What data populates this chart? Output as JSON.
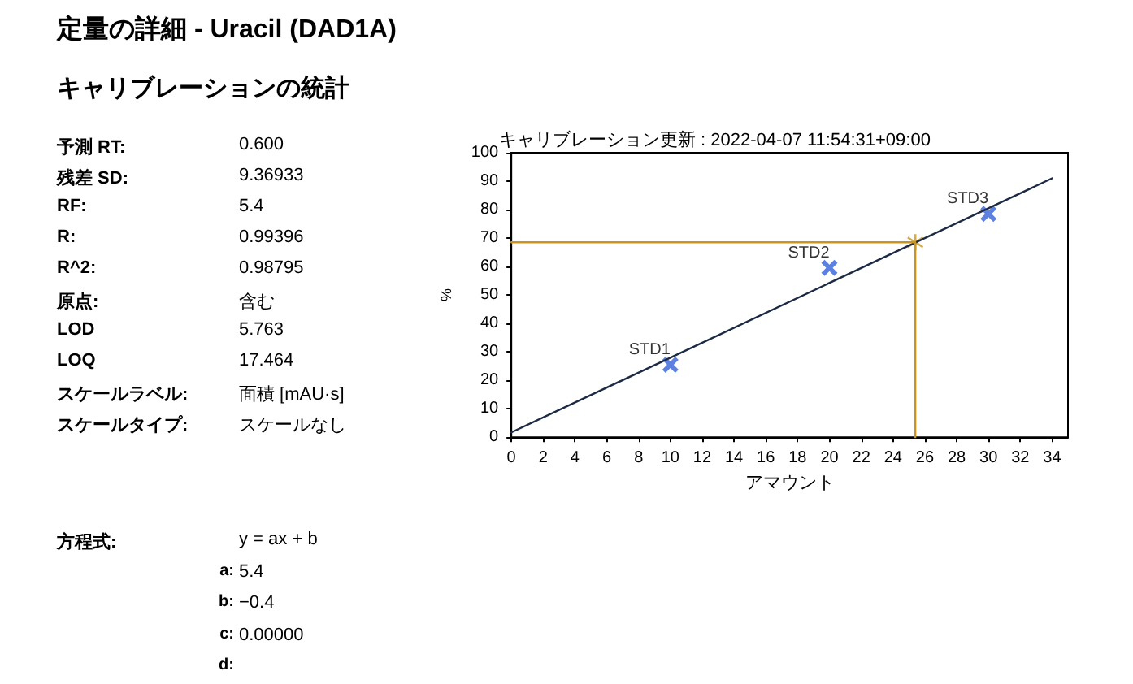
{
  "chart_data": [
    {
      "type": "other",
      "title": "定量の詳細 - Uracil (DAD1A)",
      "subtitle": "キャリブレーションの統計",
      "annotations": [
        "予測 RT:",
        "0.600",
        "残差 SD:",
        "9.36933",
        "RF:",
        "5.4",
        "R:",
        "0.99396",
        "R^2:",
        "0.98795",
        "原点:",
        "含む",
        "LOD",
        "5.763",
        "LOQ",
        "17.464",
        "スケールラベル:",
        "面積 [mAU·s]",
        "スケールタイプ:",
        "スケールなし",
        "方程式:",
        "y = ax + b",
        "a:",
        "5.4",
        "b:",
        "−0.4",
        "c:",
        "0.00000",
        "d:"
      ]
    },
    {
      "type": "scatter",
      "title": "キャリブレーション更新 : 2022-04-07 11:54:31+09:00",
      "xlabel": "アマウント",
      "ylabel": "%",
      "xlim": [
        0,
        35
      ],
      "xticks": [
        0,
        2,
        4,
        6,
        8,
        10,
        12,
        14,
        16,
        18,
        20,
        22,
        24,
        26,
        28,
        30,
        32,
        34
      ],
      "ylim": [
        0,
        100
      ],
      "yticks": [
        0,
        10,
        20,
        30,
        40,
        50,
        60,
        70,
        80,
        90,
        100
      ],
      "grid": false,
      "series": [
        {
          "type": "line",
          "color": "#1c2a44",
          "x": [
            0,
            34
          ],
          "values": [
            1.7,
            91
          ],
          "marker": "none"
        },
        {
          "type": "line",
          "color": "#c8961e",
          "x": [
            0,
            25.4,
            25.4
          ],
          "values": [
            68.5,
            68.5,
            0
          ],
          "marker": "none"
        },
        {
          "type": "scatter",
          "color": "#3562d8",
          "x": [
            10,
            20,
            30
          ],
          "values": [
            25.5,
            59.5,
            78.5
          ],
          "marker": "cross"
        },
        {
          "type": "scatter",
          "color": "#c8961e",
          "x": [
            25.4
          ],
          "values": [
            68.5
          ],
          "marker": "star"
        }
      ],
      "annotations": [
        {
          "text": "STD1",
          "x": 10,
          "y": 25.5
        },
        {
          "text": "STD2",
          "x": 20,
          "y": 59.5
        },
        {
          "text": "STD3",
          "x": 30,
          "y": 78.5
        }
      ]
    }
  ]
}
